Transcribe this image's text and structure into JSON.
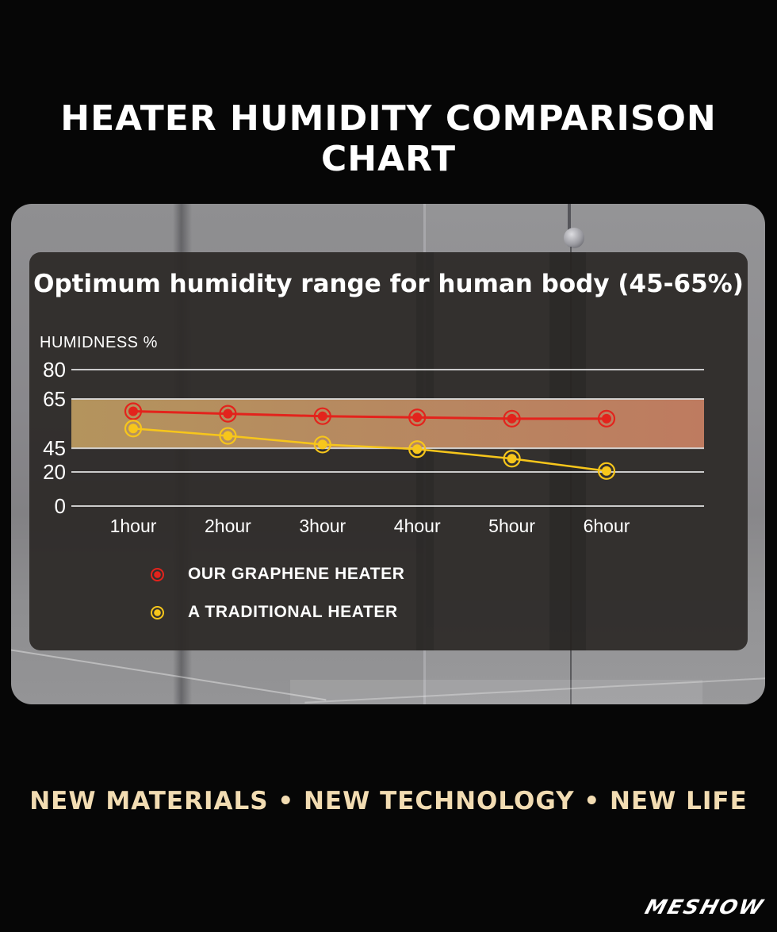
{
  "header": {
    "title": "HEATER HUMIDITY COMPARISON CHART"
  },
  "chart_data": {
    "type": "line",
    "title": "Optimum humidity range for human body (45-65%)",
    "ylabel": "HUMIDNESS %",
    "xlabel": "",
    "categories": [
      "1hour",
      "2hour",
      "3hour",
      "4hour",
      "5hour",
      "6hour"
    ],
    "series": [
      {
        "name": "OUR GRAPHENE HEATER",
        "color": "#e3231c",
        "values": [
          60,
          59,
          58,
          57.5,
          57,
          57
        ]
      },
      {
        "name": "A TRADITIONAL HEATER",
        "color": "#f7c61b",
        "values": [
          53,
          50,
          46.5,
          44,
          34,
          21
        ]
      }
    ],
    "y_axis": {
      "ticks": [
        {
          "value": 80,
          "pos": 0.0
        },
        {
          "value": 65,
          "pos": 0.215
        },
        {
          "value": 45,
          "pos": 0.576
        },
        {
          "value": 20,
          "pos": 0.75
        },
        {
          "value": 0,
          "pos": 1.0
        }
      ],
      "grid": true,
      "grid_color": "#dcdcdc"
    },
    "band": {
      "from": 45,
      "to": 65,
      "label": "Optimum humidity range 45-65%",
      "color_left": "#b9985f",
      "color_mid": "#bd8b63",
      "color_right": "#c47e62"
    },
    "legend_position": "bottom-left"
  },
  "footer": {
    "tagline": "NEW MATERIALS • NEW TECHNOLOGY • NEW LIFE",
    "tagline_color": "#f2dcb2",
    "logo": "MESHOW"
  }
}
